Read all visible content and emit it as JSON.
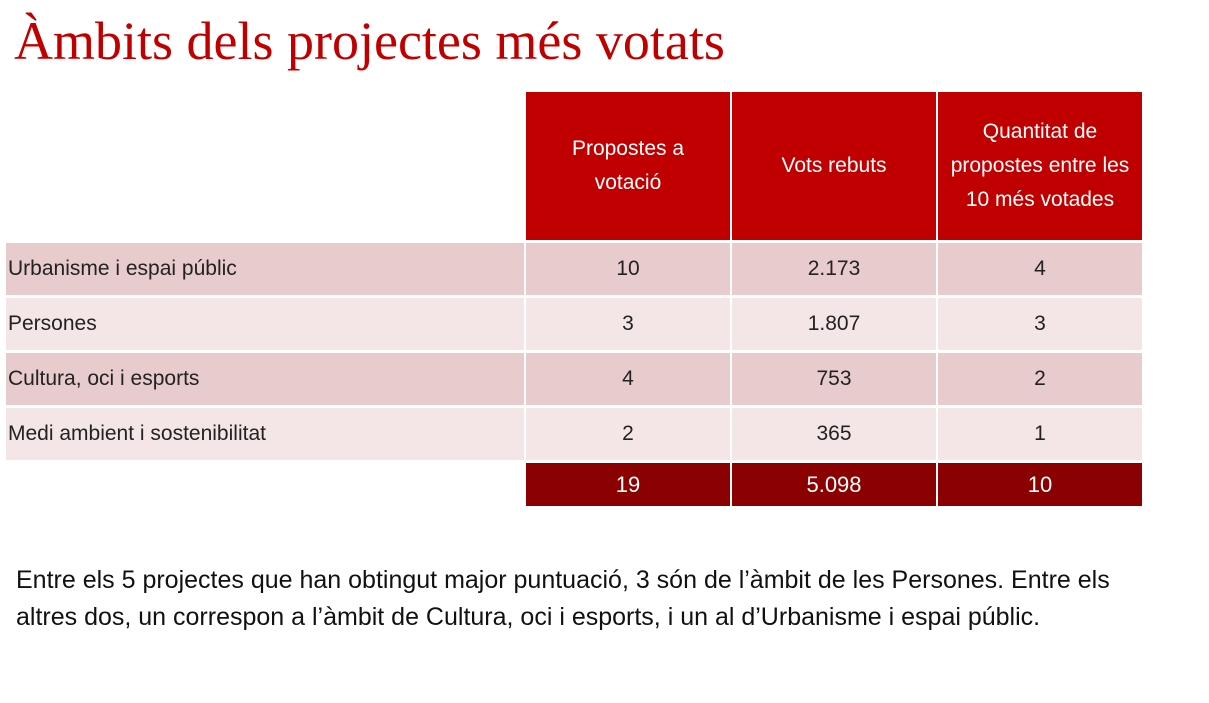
{
  "title": "Àmbits dels projectes més votats",
  "table": {
    "headers": [
      "",
      "Propostes a votació",
      "Vots rebuts",
      "Quantitat de propostes entre les 10 més votades"
    ],
    "rows": [
      [
        "Urbanisme i espai públic",
        "10",
        "2.173",
        "4"
      ],
      [
        "Persones",
        "3",
        "1.807",
        "3"
      ],
      [
        "Cultura, oci i esports",
        "4",
        "753",
        "2"
      ],
      [
        "Medi ambient i sostenibilitat",
        "2",
        "365",
        "1"
      ]
    ],
    "totals": [
      "",
      "19",
      "5.098",
      "10"
    ]
  },
  "note": "Entre els 5 projectes que han obtingut major puntuació, 3 són de l’àmbit de les Persones. Entre els altres dos, un correspon a l’àmbit de Cultura, oci i esports, i un al d’Urbanisme i espai públic."
}
